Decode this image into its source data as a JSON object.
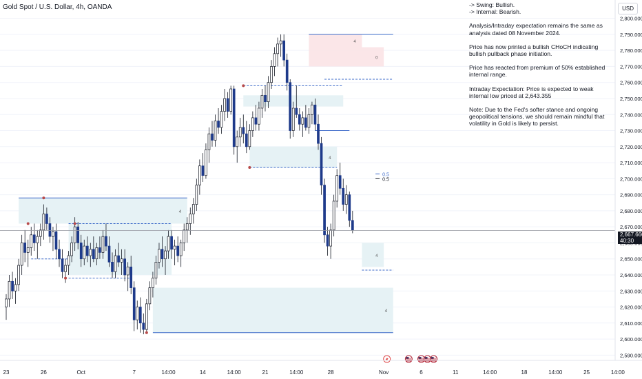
{
  "header": {
    "title": "Gold Spot / U.S. Dollar, 4h, OANDA",
    "currency_button": "USD"
  },
  "notes": [
    {
      "text": "-> Swing:  Bullish.",
      "tight": true
    },
    {
      "text": "-> Internal:  Bearish.",
      "tight": false
    },
    {
      "text": "Analysis/Intraday expectation remains the same as analysis dated 08 November 2024.",
      "tight": false
    },
    {
      "text": "Price has now printed a bullish CHoCH indicating bullish pullback phase initiation.",
      "tight": false
    },
    {
      "text": "Price has reacted from premium of 50% established internal range.",
      "tight": false
    },
    {
      "text": "Intraday Expectation: Price is expected to weak internal low priced at 2,643.355",
      "tight": false
    },
    {
      "text": "Note: Due to the Fed's softer stance and ongoing geopolitical tensions, we should remain mindful that volatility in Gold is likely to persist.",
      "tight": false
    }
  ],
  "price_tag": {
    "price": "2,667.660",
    "countdown": "40:30"
  },
  "colors": {
    "up": "#ffffff",
    "down": "#1e3a8a",
    "wick": "#131722",
    "zone_teal": "#e3f1f4",
    "zone_red": "#fbe3e6",
    "zone_line": "#3a68c8",
    "swing_dot": "#b84a4a",
    "grid": "#f0f3fa",
    "axis_text": "#131722"
  },
  "chart_data": {
    "type": "candlestick",
    "timeframe": "4h",
    "ylim": [
      2588,
      2808
    ],
    "y_ticks": [
      2590,
      2600,
      2610,
      2620,
      2630,
      2640,
      2650,
      2660,
      2670,
      2680,
      2690,
      2700,
      2710,
      2720,
      2730,
      2740,
      2750,
      2760,
      2770,
      2780,
      2790,
      2800
    ],
    "y_tick_labels": [
      "2,590.000",
      "2,600.000",
      "2,610.000",
      "2,620.000",
      "2,630.000",
      "2,640.000",
      "2,650.000",
      "2,660.000",
      "2,670.000",
      "2,680.000",
      "2,690.000",
      "2,700.000",
      "2,710.000",
      "2,720.000",
      "2,730.000",
      "2,740.000",
      "2,750.000",
      "2,760.000",
      "2,770.000",
      "2,780.000",
      "2,790.000",
      "2,800.000"
    ],
    "x_labels": [
      {
        "label": "23",
        "bar": 0
      },
      {
        "label": "26",
        "bar": 12
      },
      {
        "label": "Oct",
        "bar": 24
      },
      {
        "label": "7",
        "bar": 41
      },
      {
        "label": "14:00",
        "bar": 52
      },
      {
        "label": "14",
        "bar": 63
      },
      {
        "label": "14:00",
        "bar": 73
      },
      {
        "label": "21",
        "bar": 83
      },
      {
        "label": "14:00",
        "bar": 93
      },
      {
        "label": "28",
        "bar": 104
      },
      {
        "label": "Nov",
        "bar": 121
      },
      {
        "label": "6",
        "bar": 133
      },
      {
        "label": "11",
        "bar": 144
      },
      {
        "label": "14:00",
        "bar": 155
      },
      {
        "label": "18",
        "bar": 166
      },
      {
        "label": "14:00",
        "bar": 176
      },
      {
        "label": "25",
        "bar": 186
      },
      {
        "label": "14:00",
        "bar": 196
      }
    ],
    "current_price": 2667.66,
    "ohlc": [
      [
        2620,
        2628,
        2612,
        2625
      ],
      [
        2625,
        2640,
        2620,
        2636
      ],
      [
        2636,
        2642,
        2625,
        2630
      ],
      [
        2630,
        2638,
        2622,
        2634
      ],
      [
        2634,
        2650,
        2630,
        2646
      ],
      [
        2646,
        2665,
        2640,
        2660
      ],
      [
        2660,
        2668,
        2648,
        2654
      ],
      [
        2654,
        2662,
        2645,
        2657
      ],
      [
        2657,
        2670,
        2652,
        2665
      ],
      [
        2665,
        2672,
        2655,
        2660
      ],
      [
        2660,
        2668,
        2650,
        2664
      ],
      [
        2664,
        2672,
        2658,
        2668
      ],
      [
        2668,
        2684,
        2662,
        2678
      ],
      [
        2678,
        2682,
        2668,
        2672
      ],
      [
        2672,
        2676,
        2660,
        2664
      ],
      [
        2664,
        2670,
        2655,
        2667
      ],
      [
        2667,
        2672,
        2650,
        2656
      ],
      [
        2656,
        2662,
        2645,
        2650
      ],
      [
        2650,
        2656,
        2638,
        2642
      ],
      [
        2642,
        2650,
        2635,
        2646
      ],
      [
        2646,
        2655,
        2640,
        2652
      ],
      [
        2652,
        2664,
        2648,
        2660
      ],
      [
        2660,
        2676,
        2655,
        2670
      ],
      [
        2670,
        2673,
        2656,
        2660
      ],
      [
        2660,
        2665,
        2645,
        2650
      ],
      [
        2650,
        2662,
        2646,
        2658
      ],
      [
        2658,
        2664,
        2648,
        2652
      ],
      [
        2652,
        2660,
        2645,
        2656
      ],
      [
        2656,
        2664,
        2648,
        2650
      ],
      [
        2650,
        2660,
        2646,
        2657
      ],
      [
        2657,
        2664,
        2650,
        2654
      ],
      [
        2654,
        2668,
        2650,
        2664
      ],
      [
        2664,
        2672,
        2655,
        2658
      ],
      [
        2658,
        2664,
        2645,
        2648
      ],
      [
        2648,
        2654,
        2638,
        2642
      ],
      [
        2642,
        2656,
        2638,
        2652
      ],
      [
        2652,
        2660,
        2645,
        2648
      ],
      [
        2648,
        2656,
        2640,
        2650
      ],
      [
        2650,
        2656,
        2636,
        2640
      ],
      [
        2640,
        2648,
        2630,
        2645
      ],
      [
        2645,
        2652,
        2628,
        2632
      ],
      [
        2632,
        2636,
        2605,
        2612
      ],
      [
        2612,
        2624,
        2606,
        2620
      ],
      [
        2620,
        2626,
        2604,
        2610
      ],
      [
        2610,
        2616,
        2603,
        2606
      ],
      [
        2606,
        2625,
        2604,
        2622
      ],
      [
        2622,
        2636,
        2618,
        2632
      ],
      [
        2632,
        2642,
        2626,
        2638
      ],
      [
        2638,
        2652,
        2634,
        2648
      ],
      [
        2648,
        2660,
        2644,
        2656
      ],
      [
        2656,
        2664,
        2645,
        2650
      ],
      [
        2650,
        2658,
        2640,
        2655
      ],
      [
        2655,
        2668,
        2650,
        2664
      ],
      [
        2664,
        2668,
        2650,
        2656
      ],
      [
        2656,
        2662,
        2646,
        2658
      ],
      [
        2658,
        2664,
        2648,
        2652
      ],
      [
        2652,
        2662,
        2645,
        2660
      ],
      [
        2660,
        2672,
        2655,
        2668
      ],
      [
        2668,
        2676,
        2660,
        2672
      ],
      [
        2672,
        2682,
        2665,
        2678
      ],
      [
        2678,
        2688,
        2672,
        2684
      ],
      [
        2684,
        2700,
        2680,
        2696
      ],
      [
        2696,
        2712,
        2690,
        2708
      ],
      [
        2708,
        2716,
        2698,
        2702
      ],
      [
        2702,
        2722,
        2700,
        2718
      ],
      [
        2718,
        2732,
        2710,
        2728
      ],
      [
        2728,
        2736,
        2720,
        2724
      ],
      [
        2724,
        2740,
        2720,
        2736
      ],
      [
        2736,
        2744,
        2728,
        2732
      ],
      [
        2732,
        2746,
        2728,
        2742
      ],
      [
        2742,
        2756,
        2736,
        2750
      ],
      [
        2750,
        2754,
        2738,
        2742
      ],
      [
        2742,
        2758,
        2740,
        2756
      ],
      [
        2756,
        2758,
        2715,
        2720
      ],
      [
        2720,
        2730,
        2710,
        2726
      ],
      [
        2726,
        2738,
        2720,
        2732
      ],
      [
        2732,
        2740,
        2722,
        2728
      ],
      [
        2728,
        2736,
        2716,
        2720
      ],
      [
        2720,
        2734,
        2718,
        2730
      ],
      [
        2730,
        2742,
        2726,
        2738
      ],
      [
        2738,
        2746,
        2730,
        2734
      ],
      [
        2734,
        2748,
        2730,
        2744
      ],
      [
        2744,
        2756,
        2738,
        2752
      ],
      [
        2752,
        2758,
        2742,
        2748
      ],
      [
        2748,
        2764,
        2744,
        2760
      ],
      [
        2760,
        2774,
        2756,
        2770
      ],
      [
        2770,
        2782,
        2764,
        2778
      ],
      [
        2778,
        2788,
        2770,
        2784
      ],
      [
        2784,
        2790,
        2776,
        2786
      ],
      [
        2786,
        2790,
        2770,
        2774
      ],
      [
        2774,
        2778,
        2755,
        2760
      ],
      [
        2760,
        2762,
        2725,
        2730
      ],
      [
        2730,
        2748,
        2726,
        2744
      ],
      [
        2744,
        2758,
        2738,
        2740
      ],
      [
        2740,
        2744,
        2730,
        2734
      ],
      [
        2734,
        2742,
        2726,
        2738
      ],
      [
        2738,
        2746,
        2730,
        2732
      ],
      [
        2732,
        2744,
        2728,
        2740
      ],
      [
        2740,
        2748,
        2734,
        2746
      ],
      [
        2746,
        2750,
        2730,
        2734
      ],
      [
        2734,
        2740,
        2718,
        2722
      ],
      [
        2722,
        2726,
        2690,
        2696
      ],
      [
        2696,
        2700,
        2660,
        2665
      ],
      [
        2665,
        2670,
        2652,
        2658
      ],
      [
        2658,
        2672,
        2650,
        2668
      ],
      [
        2668,
        2690,
        2664,
        2686
      ],
      [
        2686,
        2706,
        2682,
        2702
      ],
      [
        2702,
        2710,
        2690,
        2694
      ],
      [
        2694,
        2700,
        2680,
        2684
      ],
      [
        2684,
        2696,
        2678,
        2690
      ],
      [
        2690,
        2692,
        2670,
        2674
      ],
      [
        2674,
        2680,
        2666,
        2668
      ]
    ],
    "zones": [
      {
        "x0": 4,
        "x1": 58,
        "top": 2688,
        "bottom": 2672,
        "kind": "teal",
        "label": "4"
      },
      {
        "x0": 20,
        "x1": 53,
        "top": 2672,
        "bottom": 2640,
        "kind": "teal",
        "label": ""
      },
      {
        "x0": 47,
        "x1": 124,
        "top": 2632,
        "bottom": 2604,
        "kind": "teal",
        "label": "4"
      },
      {
        "x0": 76,
        "x1": 108,
        "top": 2752,
        "bottom": 2745,
        "kind": "teal",
        "label": ""
      },
      {
        "x0": 78,
        "x1": 106,
        "top": 2720,
        "bottom": 2707,
        "kind": "teal",
        "label": "4"
      },
      {
        "x0": 97,
        "x1": 114,
        "top": 2790,
        "bottom": 2782,
        "kind": "red",
        "label": "4"
      },
      {
        "x0": 97,
        "x1": 121,
        "top": 2782,
        "bottom": 2770,
        "kind": "red",
        "label": "0"
      },
      {
        "x0": 114,
        "x1": 121,
        "top": 2660,
        "bottom": 2645,
        "kind": "teal",
        "label": "4"
      }
    ],
    "lines": [
      {
        "x0": 4,
        "x1": 58,
        "price": 2688,
        "style": "solid"
      },
      {
        "x0": 20,
        "x1": 53,
        "price": 2672,
        "style": "dashed"
      },
      {
        "x0": 8,
        "x1": 20,
        "price": 2650,
        "style": "dashed"
      },
      {
        "x0": 20,
        "x1": 40,
        "price": 2638,
        "style": "dashed"
      },
      {
        "x0": 47,
        "x1": 124,
        "price": 2604,
        "style": "solid"
      },
      {
        "x0": 78,
        "x1": 106,
        "price": 2707,
        "style": "dashed"
      },
      {
        "x0": 76,
        "x1": 108,
        "price": 2758,
        "style": "dashed"
      },
      {
        "x0": 97,
        "x1": 124,
        "price": 2790,
        "style": "solid"
      },
      {
        "x0": 102,
        "x1": 124,
        "price": 2762,
        "style": "dashed"
      },
      {
        "x0": 99,
        "x1": 110,
        "price": 2730,
        "style": "solid"
      },
      {
        "x0": 114,
        "x1": 124,
        "price": 2643,
        "style": "dashed"
      }
    ],
    "swing_points": [
      {
        "bar": 12,
        "price": 2688
      },
      {
        "bar": 7,
        "price": 2672
      },
      {
        "bar": 22,
        "price": 2672
      },
      {
        "bar": 19,
        "price": 2638
      },
      {
        "bar": 45,
        "price": 2604
      },
      {
        "bar": 76,
        "price": 2758
      },
      {
        "bar": 78,
        "price": 2707
      }
    ],
    "fib_labels": [
      {
        "bar": 121,
        "price": 2703,
        "text": "0.5",
        "color": "#3a68c8"
      },
      {
        "bar": 121,
        "price": 2700,
        "text": "0.5",
        "color": "#131722"
      }
    ],
    "event_markers": [
      {
        "bar": 122,
        "kind": "flash"
      },
      {
        "bar": 129,
        "kind": "us-flag"
      },
      {
        "bar": 133,
        "kind": "us-flag"
      },
      {
        "bar": 135,
        "kind": "us-flag"
      },
      {
        "bar": 137,
        "kind": "us-flag"
      }
    ]
  }
}
